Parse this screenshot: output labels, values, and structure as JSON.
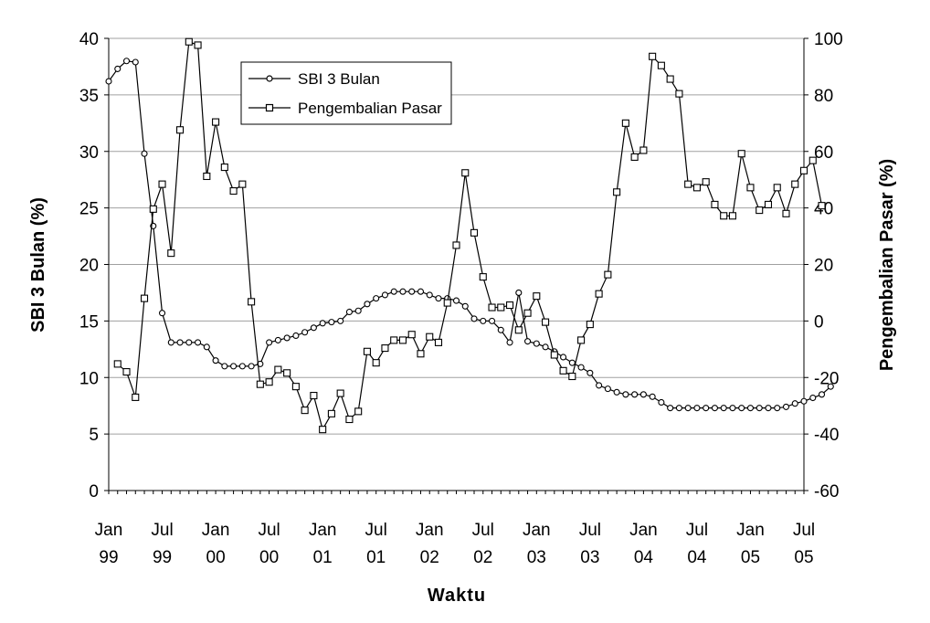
{
  "chart_data": {
    "type": "line",
    "xlabel": "Waktu",
    "ylabel_left": "SBI 3 Bulan (%)",
    "ylabel_right": "Pengembalian Pasar (%)",
    "ylim_left": [
      0,
      40
    ],
    "ylim_right": [
      -60,
      100
    ],
    "yticks_left": [
      "0",
      "5",
      "10",
      "15",
      "20",
      "25",
      "30",
      "35",
      "40"
    ],
    "yticks_right": [
      "-60",
      "-40",
      "-20",
      "0",
      "20",
      "40",
      "60",
      "80",
      "100"
    ],
    "x_tick_labels": [
      [
        "Jan",
        "99"
      ],
      [
        "Jul",
        "99"
      ],
      [
        "Jan",
        "00"
      ],
      [
        "Jul",
        "00"
      ],
      [
        "Jan",
        "01"
      ],
      [
        "Jul",
        "01"
      ],
      [
        "Jan",
        "02"
      ],
      [
        "Jul",
        "02"
      ],
      [
        "Jan",
        "03"
      ],
      [
        "Jul",
        "03"
      ],
      [
        "Jan",
        "04"
      ],
      [
        "Jul",
        "04"
      ],
      [
        "Jan",
        "05"
      ],
      [
        "Jul",
        "05"
      ]
    ],
    "grid": "horizontal",
    "legend_position": "top-left",
    "series": [
      {
        "name": "SBI 3 Bulan",
        "axis": "left",
        "marker": "circle",
        "start": "1999-01",
        "values": [
          36.2,
          37.3,
          38.0,
          37.9,
          29.8,
          23.4,
          15.7,
          13.1,
          13.1,
          13.1,
          13.1,
          12.7,
          11.5,
          11.0,
          11.0,
          11.0,
          11.0,
          11.2,
          13.1,
          13.3,
          13.5,
          13.7,
          14.0,
          14.4,
          14.8,
          14.9,
          15.0,
          15.8,
          15.9,
          16.5,
          17.0,
          17.3,
          17.6,
          17.6,
          17.6,
          17.6,
          17.3,
          17.0,
          17.0,
          16.8,
          16.3,
          15.2,
          15.0,
          15.0,
          14.2,
          13.1,
          17.5,
          13.2,
          13.0,
          12.7,
          12.3,
          11.8,
          11.3,
          10.9,
          10.4,
          9.3,
          9.0,
          8.7,
          8.5,
          8.5,
          8.5,
          8.3,
          7.8,
          7.3,
          7.3,
          7.3,
          7.3,
          7.3,
          7.3,
          7.3,
          7.3,
          7.3,
          7.3,
          7.3,
          7.3,
          7.3,
          7.4,
          7.7,
          7.9,
          8.2,
          8.5,
          9.2
        ]
      },
      {
        "name": "Pengembalian Pasar",
        "axis": "right",
        "marker": "square",
        "start": "1999-02",
        "values": [
          -15.2,
          -18.0,
          -27.0,
          8.0,
          39.6,
          48.4,
          24.0,
          67.6,
          98.8,
          97.6,
          51.2,
          70.4,
          54.4,
          46.0,
          48.4,
          6.8,
          -22.4,
          -21.6,
          -17.2,
          -18.4,
          -23.2,
          -31.6,
          -26.4,
          -38.4,
          -32.8,
          -25.6,
          -34.8,
          -32.0,
          -10.8,
          -14.8,
          -9.6,
          -6.8,
          -6.8,
          -4.8,
          -11.6,
          -5.6,
          -7.6,
          6.4,
          26.8,
          52.4,
          31.2,
          15.6,
          4.8,
          4.8,
          5.6,
          -3.2,
          2.8,
          8.8,
          -0.4,
          -12.0,
          -17.6,
          -19.6,
          -6.8,
          -1.2,
          9.6,
          16.4,
          45.6,
          70.0,
          58.0,
          60.4,
          93.6,
          90.4,
          85.6,
          80.4,
          48.4,
          47.2,
          49.2,
          41.2,
          37.2,
          37.2,
          59.2,
          47.2,
          39.2,
          41.2,
          47.2,
          38.0,
          48.4,
          53.2,
          56.8,
          40.8
        ]
      }
    ]
  }
}
